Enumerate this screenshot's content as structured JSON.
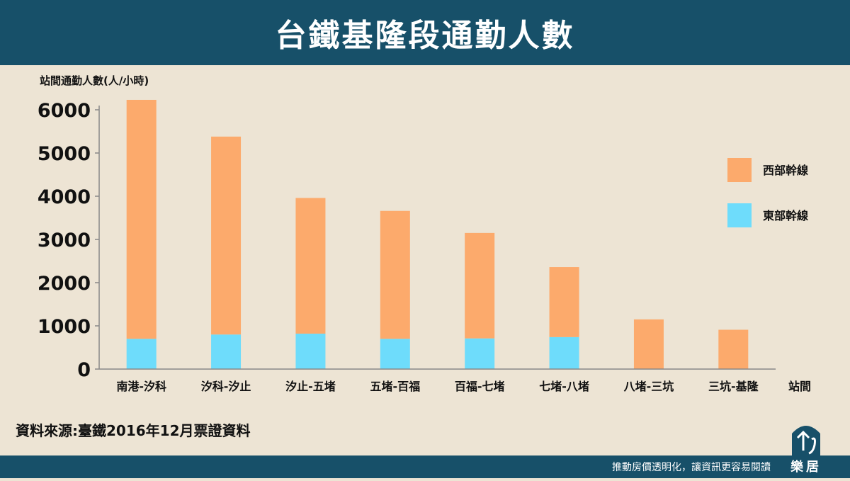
{
  "header": {
    "title": "台鐵基隆段通勤人數"
  },
  "colors": {
    "header_bg": "#175069",
    "background": "#ede4d4",
    "west": "#fcaa6c",
    "east": "#6edcfb"
  },
  "chart_data": {
    "type": "bar",
    "stacked": true,
    "ylabel": "站間通勤人數(人/小時)",
    "xlabel": "站間",
    "ylim": [
      0,
      6000
    ],
    "yticks": [
      0,
      1000,
      2000,
      3000,
      4000,
      5000,
      6000
    ],
    "categories": [
      "南港-汐科",
      "汐科-汐止",
      "汐止-五堵",
      "五堵-百福",
      "百福-七堵",
      "七堵-八堵",
      "八堵-三坑",
      "三坑-基隆"
    ],
    "series": [
      {
        "name": "東部幹線",
        "color": "#6edcfb",
        "values": [
          700,
          800,
          820,
          700,
          710,
          740,
          0,
          0
        ]
      },
      {
        "name": "西部幹線",
        "color": "#fcaa6c",
        "values": [
          5530,
          4580,
          3140,
          2960,
          2440,
          1620,
          1150,
          910
        ]
      }
    ],
    "legend": {
      "position": "right",
      "items": [
        "西部幹線",
        "東部幹線"
      ]
    },
    "grid": false
  },
  "source": "資料來源:臺鐵2016年12月票證資料",
  "footer": {
    "slogan": "推動房價透明化，讓資訊更容易閱讀",
    "logo_text": "樂居"
  }
}
